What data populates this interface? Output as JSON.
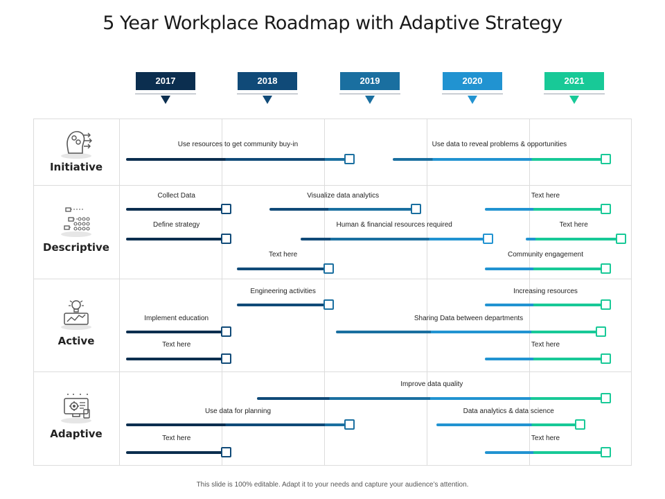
{
  "title": "5 Year Workplace Roadmap with Adaptive Strategy",
  "footer": "This slide is 100% editable. Adapt it to your needs and capture your audience’s attention.",
  "colors": {
    "y2017": "#0b2e4f",
    "y2018": "#104a78",
    "y2019": "#1a6fa0",
    "y2020": "#2193d1",
    "y2021": "#18c997"
  },
  "years": [
    {
      "label": "2017",
      "color": "#0b2e4f"
    },
    {
      "label": "2018",
      "color": "#104a78"
    },
    {
      "label": "2019",
      "color": "#1a6fa0"
    },
    {
      "label": "2020",
      "color": "#2193d1"
    },
    {
      "label": "2021",
      "color": "#18c997"
    }
  ],
  "rows": [
    {
      "label": "Initiative",
      "icon": "brain-person-icon"
    },
    {
      "label": "Descriptive",
      "icon": "flowchart-icon"
    },
    {
      "label": "Active",
      "icon": "lightbulb-icon"
    },
    {
      "label": "Adaptive",
      "icon": "monitor-gear-icon"
    }
  ],
  "tasks": [
    {
      "label": "Use resources to get community  buy-in",
      "start": 0.0,
      "end": 2.25
    },
    {
      "label": "Use data to reveal problems  & opportunities",
      "start": 2.6,
      "end": 4.75
    },
    {
      "label": "Collect Data",
      "start": 0.0,
      "end": 1.05
    },
    {
      "label": "Visualize data analytics",
      "start": 1.4,
      "end": 2.9
    },
    {
      "label": "Text here",
      "start": 3.5,
      "end": 4.75
    },
    {
      "label": "Define strategy",
      "start": 0.0,
      "end": 1.05
    },
    {
      "label": "Human & financial  resources required",
      "start": 1.7,
      "end": 3.6
    },
    {
      "label": "Text here",
      "start": 3.9,
      "end": 4.9
    },
    {
      "label": "Text here",
      "start": 1.08,
      "end": 2.05
    },
    {
      "label": "Community  engagement",
      "start": 3.5,
      "end": 4.75
    },
    {
      "label": "Engineering activities",
      "start": 1.08,
      "end": 2.05
    },
    {
      "label": "Increasing resources",
      "start": 3.5,
      "end": 4.75
    },
    {
      "label": "Implement education",
      "start": 0.0,
      "end": 1.05
    },
    {
      "label": "Sharing Data between departments",
      "start": 2.05,
      "end": 4.7
    },
    {
      "label": "Text here",
      "start": 0.0,
      "end": 1.05
    },
    {
      "label": "Text here",
      "start": 3.5,
      "end": 4.75
    },
    {
      "label": "Improve data quality",
      "start": 1.28,
      "end": 4.75
    },
    {
      "label": "Use data for planning",
      "start": 0.0,
      "end": 2.25
    },
    {
      "label": "Data analytics  & data science",
      "start": 3.03,
      "end": 4.5
    },
    {
      "label": "Text here",
      "start": 0.0,
      "end": 1.05
    },
    {
      "label": "Text here",
      "start": 3.5,
      "end": 4.75
    }
  ]
}
